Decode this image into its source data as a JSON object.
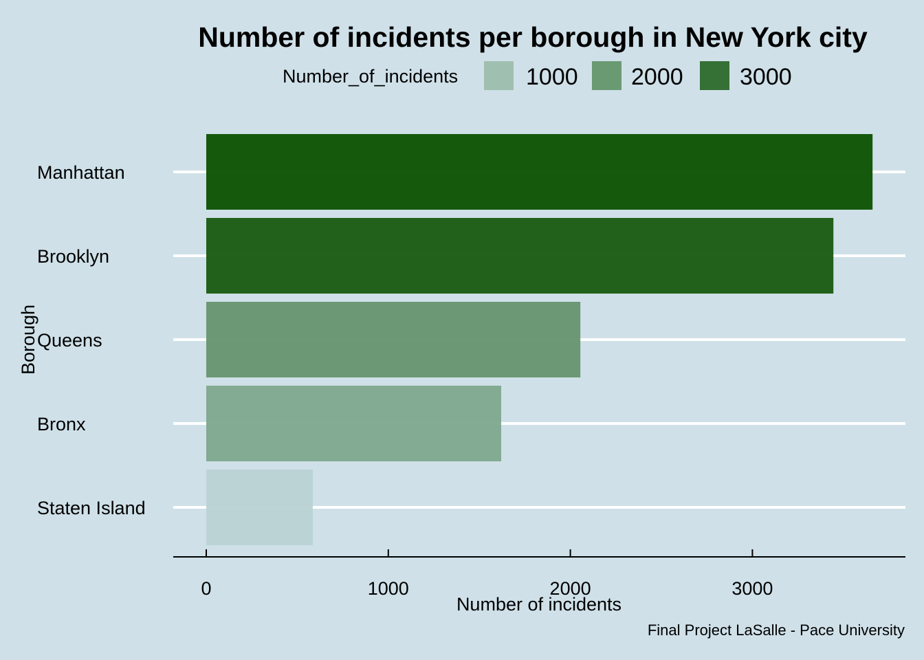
{
  "chart_data": {
    "type": "bar",
    "orientation": "horizontal",
    "title": "Number of incidents per borough in New York city",
    "xlabel": "Number of incidents",
    "ylabel": "Borough",
    "caption": "Final Project LaSalle - Pace University",
    "categories": [
      "Manhattan",
      "Brooklyn",
      "Queens",
      "Bronx",
      "Staten Island"
    ],
    "values": [
      3660,
      3445,
      2055,
      1620,
      585
    ],
    "xlim": [
      0,
      3850
    ],
    "xticks": [
      0,
      1000,
      2000,
      3000
    ],
    "xtick_labels": [
      "0",
      "1000",
      "2000",
      "3000"
    ],
    "grid": "horizontal major lines only",
    "legend": {
      "title": "Number_of_incidents",
      "position": "top",
      "entries": [
        {
          "label": "1000",
          "value": 1000,
          "color": "#9fbfb0"
        },
        {
          "label": "2000",
          "value": 2000,
          "color": "#6a9a72"
        },
        {
          "label": "3000",
          "value": 3000,
          "color": "#357035"
        }
      ]
    },
    "color_scale": {
      "low_value": 585,
      "low_color": "#b9d2d4",
      "high_value": 3660,
      "high_color": "#0b5101"
    }
  }
}
